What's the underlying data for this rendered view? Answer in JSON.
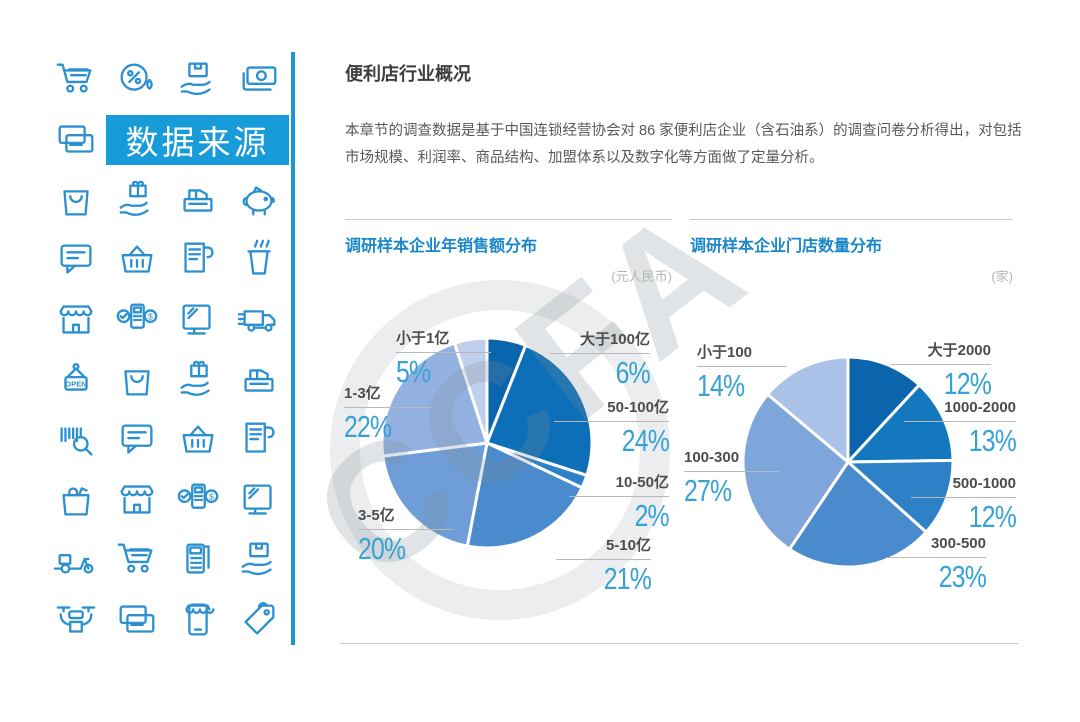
{
  "page": {
    "section_title": "便利店行业概况",
    "body_text": "本章节的调查数据是基于中国连锁经营协会对 86 家便利店企业（含石油系）的调查问卷分析得出，对包括市场规模、利润率、商品结构、加盟体系以及数字化等方面做了定量分析。",
    "watermark_text": "CCFA"
  },
  "sidebar": {
    "banner_label": "数据来源",
    "icon_color": "#2b90cf",
    "banner_bg": "#189cd9",
    "icon_rows": [
      [
        "cart",
        "percent",
        "box-hand",
        "banknote"
      ],
      [
        "cards",
        "banner"
      ],
      [
        "bag",
        "gift-hand",
        "register",
        "piggy"
      ],
      [
        "chat",
        "basket",
        "receipt",
        "cup"
      ],
      [
        "store",
        "pos",
        "monitor",
        "truck"
      ],
      [
        "open",
        "bag",
        "gift-hand",
        "register"
      ],
      [
        "barcode",
        "chat",
        "basket",
        "receipt"
      ],
      [
        "grocery",
        "store",
        "pos",
        "monitor"
      ],
      [
        "scooter",
        "cart",
        "calculator",
        "box-hand"
      ],
      [
        "drone",
        "cards",
        "mobileshop",
        "tag"
      ]
    ]
  },
  "chart_data": [
    {
      "type": "pie",
      "title": "调研样本企业年销售额分布",
      "unit": "(元人民币)",
      "start_angle_deg": 0,
      "direction": "clockwise",
      "legend_position": "outside-callouts",
      "slices": [
        {
          "label": "大于100亿",
          "value": 6,
          "color": "#0a65ad"
        },
        {
          "label": "50-100亿",
          "value": 24,
          "color": "#0d6fb8"
        },
        {
          "label": "10-50亿",
          "value": 2,
          "color": "#2e81c6"
        },
        {
          "label": "5-10亿",
          "value": 21,
          "color": "#4a8bce"
        },
        {
          "label": "3-5亿",
          "value": 20,
          "color": "#6f9dd7"
        },
        {
          "label": "1-3亿",
          "value": 22,
          "color": "#92b1e1"
        },
        {
          "label": "小于1亿",
          "value": 5,
          "color": "#bfcfed"
        }
      ]
    },
    {
      "type": "pie",
      "title": "调研样本企业门店数量分布",
      "unit": "(家)",
      "start_angle_deg": 0,
      "direction": "clockwise",
      "legend_position": "outside-callouts",
      "slices": [
        {
          "label": "大于2000",
          "value": 12,
          "color": "#0a65ad"
        },
        {
          "label": "1000-2000",
          "value": 13,
          "color": "#1478be"
        },
        {
          "label": "500-1000",
          "value": 12,
          "color": "#2e81c6"
        },
        {
          "label": "300-500",
          "value": 23,
          "color": "#4a8bce"
        },
        {
          "label": "100-300",
          "value": 27,
          "color": "#7ea6db"
        },
        {
          "label": "小于100",
          "value": 14,
          "color": "#abc2e8"
        }
      ]
    }
  ]
}
